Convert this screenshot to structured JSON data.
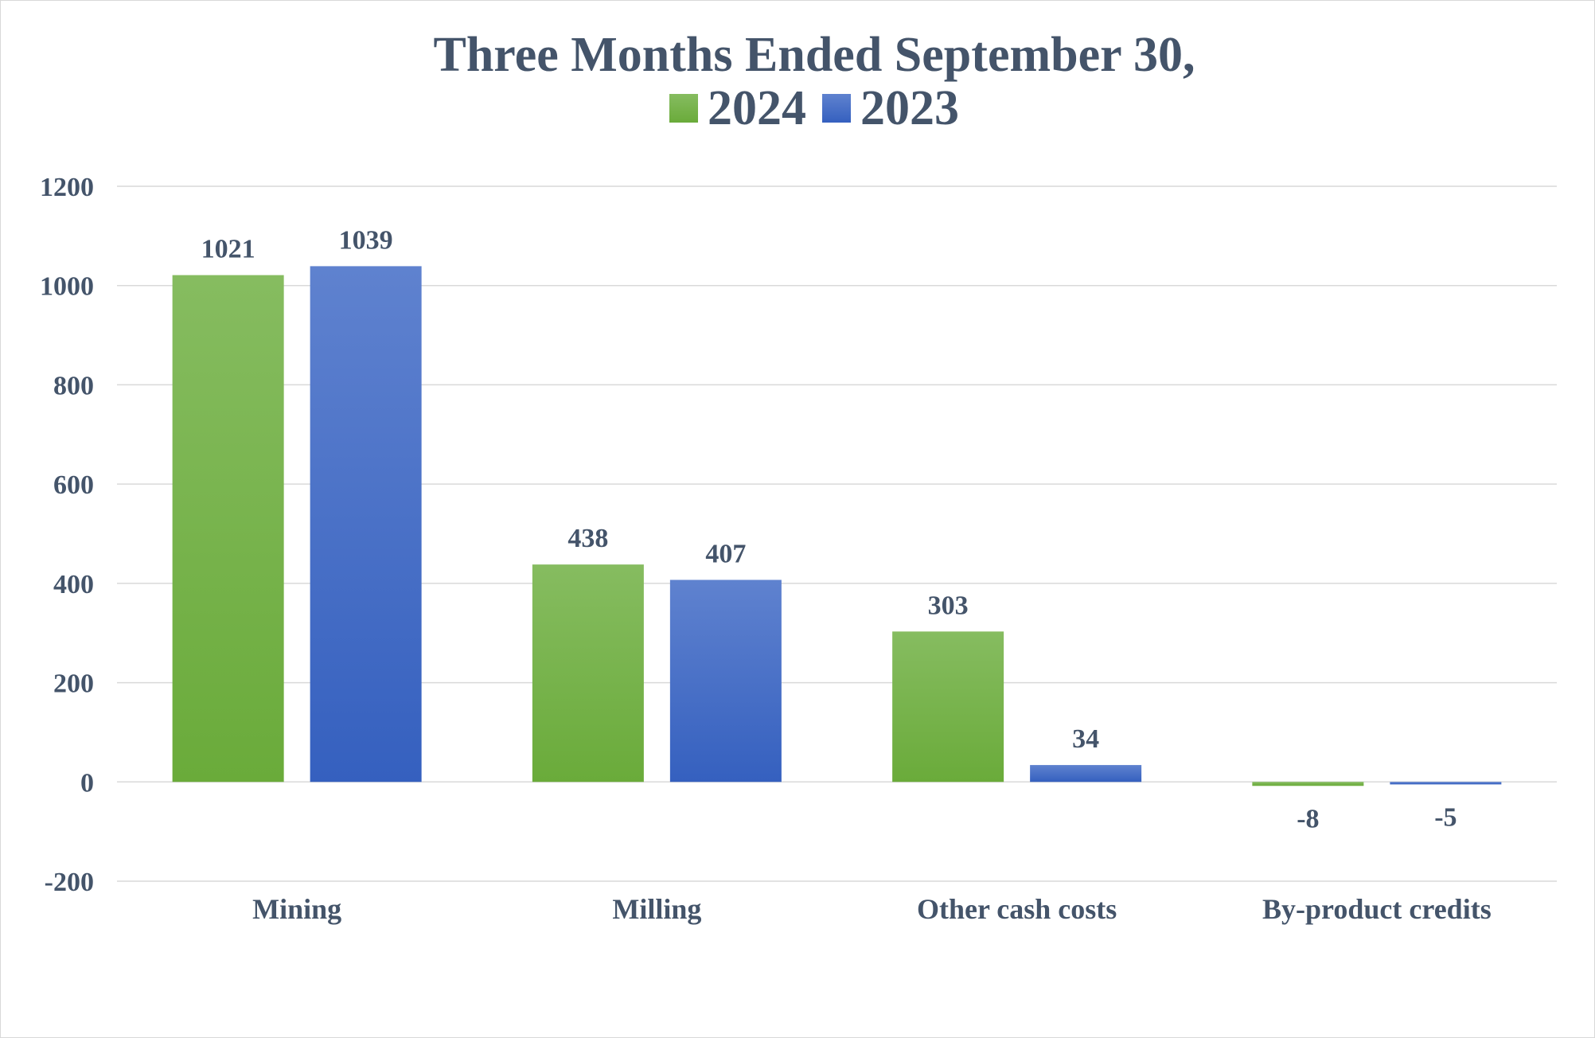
{
  "chart_data": {
    "type": "bar",
    "title": "Three Months Ended September 30,",
    "categories": [
      "Mining",
      "Milling",
      "Other cash costs",
      "By-product credits"
    ],
    "series": [
      {
        "name": "2024",
        "values": [
          1021,
          438,
          303,
          -8
        ],
        "color": "#6aab3a",
        "color_light": "#86bc60"
      },
      {
        "name": "2023",
        "values": [
          1039,
          407,
          34,
          -5
        ],
        "color": "#3560bf",
        "color_light": "#5f82cf"
      }
    ],
    "xlabel": "",
    "ylabel": "",
    "ylim": [
      -200,
      1200
    ],
    "yticks": [
      -200,
      0,
      200,
      400,
      600,
      800,
      1000,
      1200
    ],
    "grid": true,
    "legend_position": "top-center",
    "data_labels": true
  },
  "colors": {
    "text": "#44546a",
    "gridline": "#d9d9d9"
  }
}
